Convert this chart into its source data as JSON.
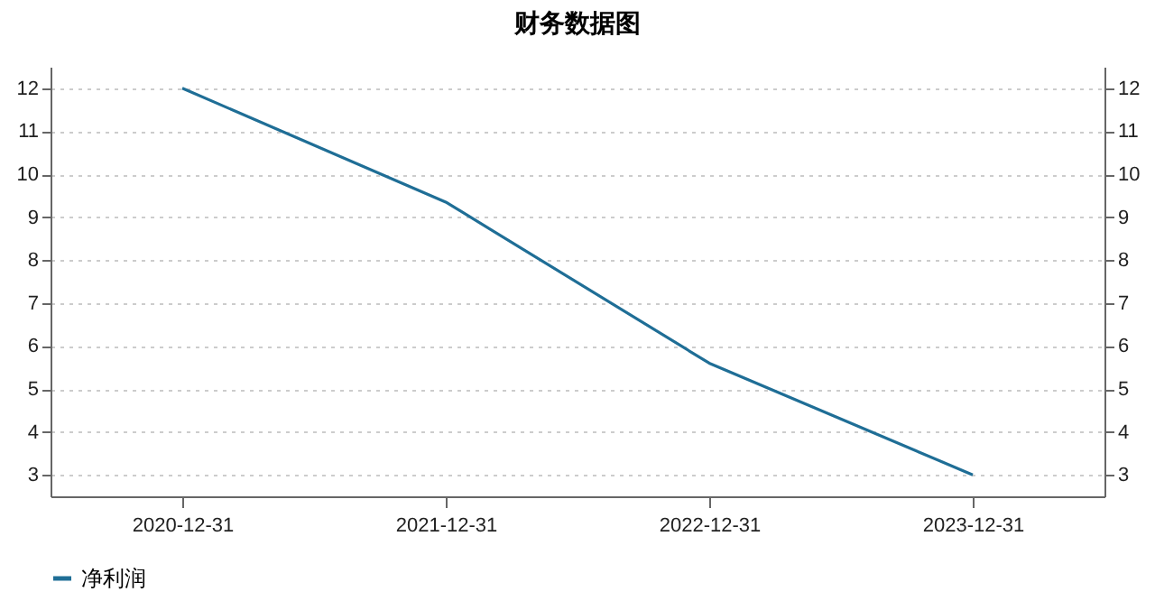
{
  "chart_data": {
    "type": "line",
    "title": "财务数据图",
    "categories": [
      "2020-12-31",
      "2021-12-31",
      "2022-12-31",
      "2023-12-31"
    ],
    "series": [
      {
        "name": "净利润",
        "color": "#1f6e96",
        "values": [
          12,
          9.35,
          5.6,
          3
        ]
      }
    ],
    "ylim": [
      2.5,
      12.5
    ],
    "yticks": [
      3,
      4,
      5,
      6,
      7,
      8,
      9,
      10,
      11,
      12
    ],
    "y2lim": [
      2.5,
      12.5
    ],
    "y2ticks": [
      3,
      4,
      5,
      6,
      7,
      8,
      9,
      10,
      11,
      12
    ],
    "grid": "y",
    "legend": "bottom",
    "marker": "none",
    "line_style": "solid"
  }
}
